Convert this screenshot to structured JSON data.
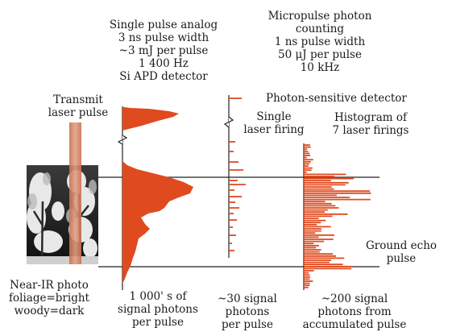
{
  "colors": {
    "signal": "#e04a1f",
    "beam": "#d98a6a",
    "line": "#222222"
  },
  "labels": {
    "analog_title": [
      "Single pulse analog",
      "3 ns pulse width",
      "~3 mJ per pulse",
      "1 400 Hz",
      "Si APD detector"
    ],
    "micropulse_title": [
      "Micropulse photon",
      "counting",
      "1 ns pulse width",
      "50 μJ per pulse",
      "10 kHz"
    ],
    "transmit": [
      "Transmit",
      "laser pulse"
    ],
    "photon_detector": "Photon-sensitive detector",
    "single_firing": [
      "Single",
      "laser firing"
    ],
    "histogram": [
      "Histogram of",
      "7 laser firings"
    ],
    "ground_echo": [
      "Ground echo",
      "pulse"
    ],
    "nir_photo": [
      "Near-IR photo",
      "foliage=bright",
      "woody=dark"
    ],
    "analog_photons": [
      "1 000' s of",
      "signal photons",
      "per pulse"
    ],
    "single_photons": [
      "~30 signal",
      "photons",
      "per pulse"
    ],
    "accum_photons": [
      "~200 signal",
      "photons from",
      "accumulated pulse"
    ]
  }
}
